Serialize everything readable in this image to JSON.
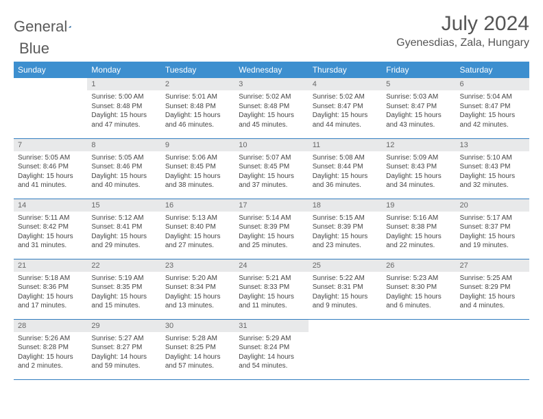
{
  "logo": {
    "text1": "General",
    "text2": "Blue"
  },
  "title": "July 2024",
  "location": "Gyenesdias, Zala, Hungary",
  "headers": [
    "Sunday",
    "Monday",
    "Tuesday",
    "Wednesday",
    "Thursday",
    "Friday",
    "Saturday"
  ],
  "colors": {
    "header_bg": "#3d8fcf",
    "header_text": "#ffffff",
    "daynum_bg": "#e8e9ea",
    "border": "#2f7bbf",
    "logo_gray": "#5a5a5a",
    "logo_blue": "#2f7bbf"
  },
  "weeks": [
    [
      {
        "n": "",
        "sr": "",
        "ss": "",
        "dl": ""
      },
      {
        "n": "1",
        "sr": "5:00 AM",
        "ss": "8:48 PM",
        "dl": "15 hours and 47 minutes."
      },
      {
        "n": "2",
        "sr": "5:01 AM",
        "ss": "8:48 PM",
        "dl": "15 hours and 46 minutes."
      },
      {
        "n": "3",
        "sr": "5:02 AM",
        "ss": "8:48 PM",
        "dl": "15 hours and 45 minutes."
      },
      {
        "n": "4",
        "sr": "5:02 AM",
        "ss": "8:47 PM",
        "dl": "15 hours and 44 minutes."
      },
      {
        "n": "5",
        "sr": "5:03 AM",
        "ss": "8:47 PM",
        "dl": "15 hours and 43 minutes."
      },
      {
        "n": "6",
        "sr": "5:04 AM",
        "ss": "8:47 PM",
        "dl": "15 hours and 42 minutes."
      }
    ],
    [
      {
        "n": "7",
        "sr": "5:05 AM",
        "ss": "8:46 PM",
        "dl": "15 hours and 41 minutes."
      },
      {
        "n": "8",
        "sr": "5:05 AM",
        "ss": "8:46 PM",
        "dl": "15 hours and 40 minutes."
      },
      {
        "n": "9",
        "sr": "5:06 AM",
        "ss": "8:45 PM",
        "dl": "15 hours and 38 minutes."
      },
      {
        "n": "10",
        "sr": "5:07 AM",
        "ss": "8:45 PM",
        "dl": "15 hours and 37 minutes."
      },
      {
        "n": "11",
        "sr": "5:08 AM",
        "ss": "8:44 PM",
        "dl": "15 hours and 36 minutes."
      },
      {
        "n": "12",
        "sr": "5:09 AM",
        "ss": "8:43 PM",
        "dl": "15 hours and 34 minutes."
      },
      {
        "n": "13",
        "sr": "5:10 AM",
        "ss": "8:43 PM",
        "dl": "15 hours and 32 minutes."
      }
    ],
    [
      {
        "n": "14",
        "sr": "5:11 AM",
        "ss": "8:42 PM",
        "dl": "15 hours and 31 minutes."
      },
      {
        "n": "15",
        "sr": "5:12 AM",
        "ss": "8:41 PM",
        "dl": "15 hours and 29 minutes."
      },
      {
        "n": "16",
        "sr": "5:13 AM",
        "ss": "8:40 PM",
        "dl": "15 hours and 27 minutes."
      },
      {
        "n": "17",
        "sr": "5:14 AM",
        "ss": "8:39 PM",
        "dl": "15 hours and 25 minutes."
      },
      {
        "n": "18",
        "sr": "5:15 AM",
        "ss": "8:39 PM",
        "dl": "15 hours and 23 minutes."
      },
      {
        "n": "19",
        "sr": "5:16 AM",
        "ss": "8:38 PM",
        "dl": "15 hours and 22 minutes."
      },
      {
        "n": "20",
        "sr": "5:17 AM",
        "ss": "8:37 PM",
        "dl": "15 hours and 19 minutes."
      }
    ],
    [
      {
        "n": "21",
        "sr": "5:18 AM",
        "ss": "8:36 PM",
        "dl": "15 hours and 17 minutes."
      },
      {
        "n": "22",
        "sr": "5:19 AM",
        "ss": "8:35 PM",
        "dl": "15 hours and 15 minutes."
      },
      {
        "n": "23",
        "sr": "5:20 AM",
        "ss": "8:34 PM",
        "dl": "15 hours and 13 minutes."
      },
      {
        "n": "24",
        "sr": "5:21 AM",
        "ss": "8:33 PM",
        "dl": "15 hours and 11 minutes."
      },
      {
        "n": "25",
        "sr": "5:22 AM",
        "ss": "8:31 PM",
        "dl": "15 hours and 9 minutes."
      },
      {
        "n": "26",
        "sr": "5:23 AM",
        "ss": "8:30 PM",
        "dl": "15 hours and 6 minutes."
      },
      {
        "n": "27",
        "sr": "5:25 AM",
        "ss": "8:29 PM",
        "dl": "15 hours and 4 minutes."
      }
    ],
    [
      {
        "n": "28",
        "sr": "5:26 AM",
        "ss": "8:28 PM",
        "dl": "15 hours and 2 minutes."
      },
      {
        "n": "29",
        "sr": "5:27 AM",
        "ss": "8:27 PM",
        "dl": "14 hours and 59 minutes."
      },
      {
        "n": "30",
        "sr": "5:28 AM",
        "ss": "8:25 PM",
        "dl": "14 hours and 57 minutes."
      },
      {
        "n": "31",
        "sr": "5:29 AM",
        "ss": "8:24 PM",
        "dl": "14 hours and 54 minutes."
      },
      {
        "n": "",
        "sr": "",
        "ss": "",
        "dl": ""
      },
      {
        "n": "",
        "sr": "",
        "ss": "",
        "dl": ""
      },
      {
        "n": "",
        "sr": "",
        "ss": "",
        "dl": ""
      }
    ]
  ],
  "labels": {
    "sunrise": "Sunrise: ",
    "sunset": "Sunset: ",
    "daylight": "Daylight: "
  }
}
